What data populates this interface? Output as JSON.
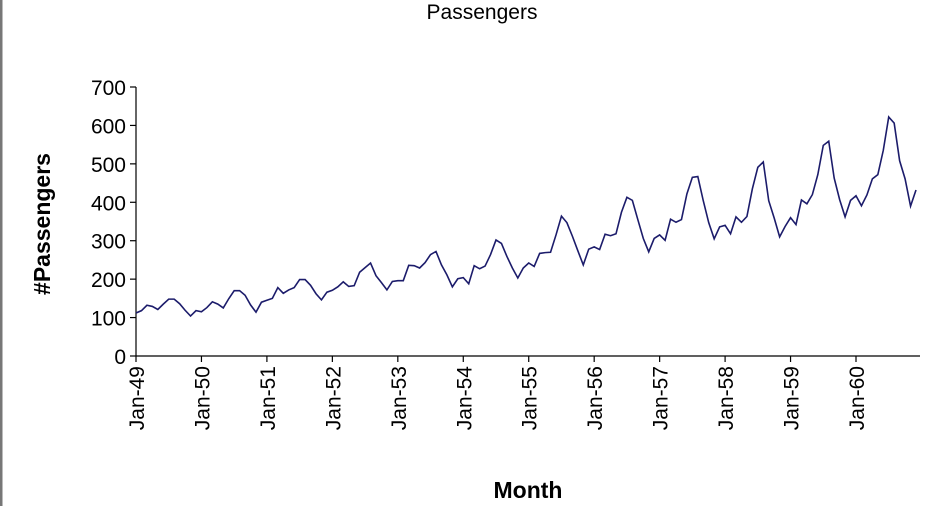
{
  "chart_data": {
    "type": "line",
    "title": "Passengers",
    "x_label": "Month",
    "y_label": "#Passengers",
    "categories": [
      "Jan-49",
      null,
      null,
      null,
      null,
      null,
      null,
      null,
      null,
      null,
      null,
      null,
      "Jan-50",
      null,
      null,
      null,
      null,
      null,
      null,
      null,
      null,
      null,
      null,
      null,
      "Jan-51",
      null,
      null,
      null,
      null,
      null,
      null,
      null,
      null,
      null,
      null,
      null,
      "Jan-52",
      null,
      null,
      null,
      null,
      null,
      null,
      null,
      null,
      null,
      null,
      null,
      "Jan-53",
      null,
      null,
      null,
      null,
      null,
      null,
      null,
      null,
      null,
      null,
      null,
      "Jan-54",
      null,
      null,
      null,
      null,
      null,
      null,
      null,
      null,
      null,
      null,
      null,
      "Jan-55",
      null,
      null,
      null,
      null,
      null,
      null,
      null,
      null,
      null,
      null,
      null,
      "Jan-56",
      null,
      null,
      null,
      null,
      null,
      null,
      null,
      null,
      null,
      null,
      null,
      "Jan-57",
      null,
      null,
      null,
      null,
      null,
      null,
      null,
      null,
      null,
      null,
      null,
      "Jan-58",
      null,
      null,
      null,
      null,
      null,
      null,
      null,
      null,
      null,
      null,
      null,
      "Jan-59",
      null,
      null,
      null,
      null,
      null,
      null,
      null,
      null,
      null,
      null,
      null,
      "Jan-60",
      null,
      null,
      null,
      null,
      null,
      null,
      null,
      null,
      null,
      null,
      null
    ],
    "series": [
      {
        "color": "#1c1c6b",
        "values": [
          112,
          118,
          132,
          129,
          121,
          135,
          148,
          148,
          136,
          119,
          104,
          118,
          115,
          126,
          141,
          135,
          125,
          149,
          170,
          170,
          158,
          133,
          114,
          140,
          145,
          150,
          178,
          163,
          172,
          178,
          199,
          199,
          184,
          162,
          146,
          166,
          171,
          180,
          193,
          181,
          183,
          218,
          230,
          242,
          209,
          191,
          172,
          194,
          196,
          196,
          236,
          235,
          229,
          243,
          264,
          272,
          237,
          211,
          180,
          201,
          204,
          188,
          235,
          227,
          234,
          264,
          302,
          293,
          259,
          229,
          203,
          229,
          242,
          233,
          267,
          269,
          270,
          315,
          364,
          347,
          312,
          274,
          237,
          278,
          284,
          277,
          317,
          313,
          318,
          374,
          413,
          405,
          355,
          306,
          271,
          306,
          315,
          301,
          356,
          348,
          355,
          422,
          465,
          467,
          404,
          347,
          305,
          336,
          340,
          318,
          362,
          348,
          363,
          435,
          491,
          505,
          404,
          359,
          310,
          337,
          360,
          342,
          406,
          396,
          420,
          472,
          548,
          559,
          463,
          407,
          362,
          405,
          417,
          391,
          419,
          461,
          472,
          535,
          622,
          606,
          508,
          461,
          390,
          432
        ]
      }
    ],
    "ylim": [
      0,
      700
    ],
    "yticks": [
      0,
      100,
      200,
      300,
      400,
      500,
      600,
      700
    ]
  }
}
